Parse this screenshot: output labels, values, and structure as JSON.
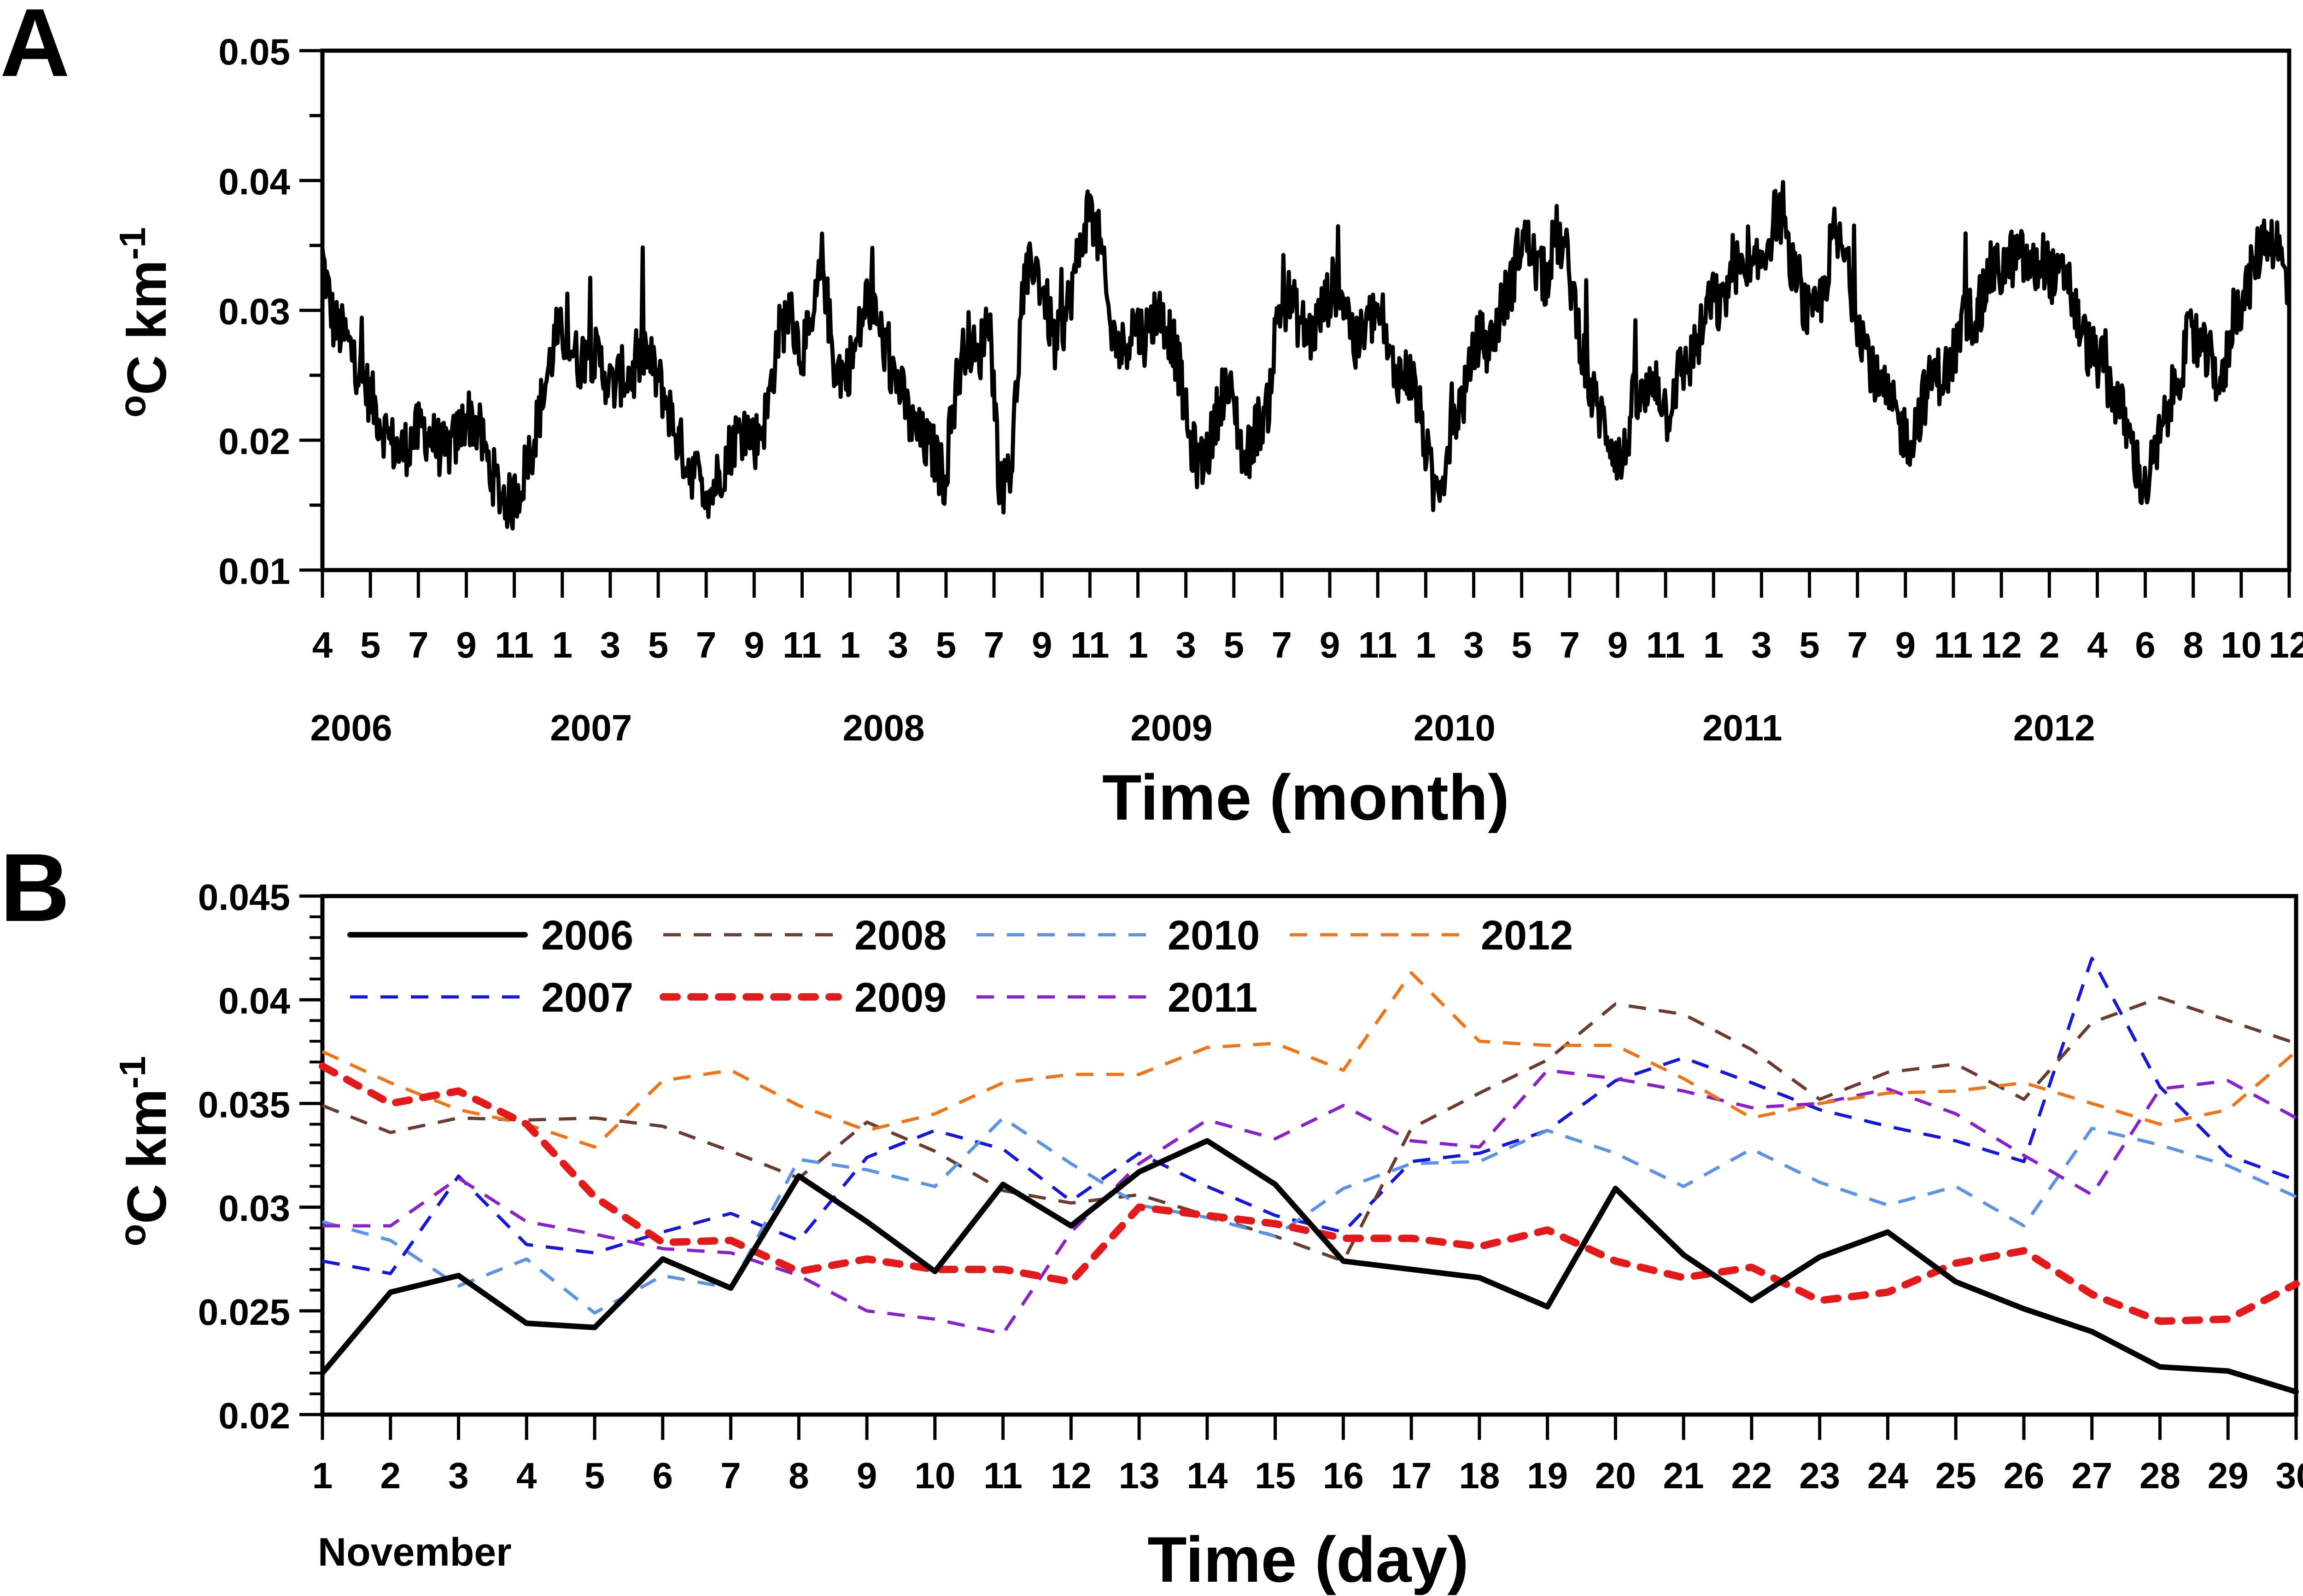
{
  "chart_data": [
    {
      "panel_label": "A",
      "type": "line",
      "ylabel": "°C km⁻¹",
      "xlabel": "Time (month)",
      "ylim": [
        0.01,
        0.05
      ],
      "yticks": [
        "0.01",
        "0.02",
        "0.03",
        "0.04",
        "0.05"
      ],
      "month_ticks": [
        "4",
        "5",
        "7",
        "9",
        "11",
        "1",
        "3",
        "5",
        "7",
        "9",
        "11",
        "1",
        "3",
        "5",
        "7",
        "9",
        "11",
        "1",
        "3",
        "5",
        "7",
        "9",
        "11",
        "1",
        "3",
        "5",
        "7",
        "9",
        "11",
        "1",
        "3",
        "5",
        "7",
        "9",
        "11",
        "12",
        "2",
        "4",
        "6",
        "8",
        "10",
        "12"
      ],
      "year_labels": [
        {
          "label": "2006",
          "month_index": 0.6
        },
        {
          "label": "2007",
          "month_index": 5.6
        },
        {
          "label": "2008",
          "month_index": 11.7
        },
        {
          "label": "2009",
          "month_index": 17.7
        },
        {
          "label": "2010",
          "month_index": 23.6
        },
        {
          "label": "2011",
          "month_index": 29.6
        },
        {
          "label": "2012",
          "month_index": 36.1
        }
      ],
      "series": [
        {
          "color": "#000000",
          "y": [
            0.034,
            0.029,
            0.028,
            0.026,
            0.024,
            0.022,
            0.02,
            0.019,
            0.02,
            0.021,
            0.02,
            0.019,
            0.02,
            0.022,
            0.021,
            0.018,
            0.016,
            0.015,
            0.017,
            0.02,
            0.024,
            0.028,
            0.028,
            0.026,
            0.027,
            0.026,
            0.024,
            0.025,
            0.025,
            0.027,
            0.025,
            0.023,
            0.02,
            0.018,
            0.017,
            0.016,
            0.018,
            0.02,
            0.021,
            0.02,
            0.022,
            0.028,
            0.03,
            0.027,
            0.028,
            0.034,
            0.026,
            0.025,
            0.027,
            0.031,
            0.029,
            0.026,
            0.024,
            0.021,
            0.02,
            0.019,
            0.017,
            0.024,
            0.028,
            0.026,
            0.03,
            0.016,
            0.018,
            0.031,
            0.034,
            0.031,
            0.027,
            0.03,
            0.034,
            0.038,
            0.035,
            0.028,
            0.027,
            0.029,
            0.028,
            0.03,
            0.029,
            0.026,
            0.02,
            0.018,
            0.02,
            0.024,
            0.023,
            0.018,
            0.021,
            0.022,
            0.03,
            0.031,
            0.029,
            0.028,
            0.03,
            0.032,
            0.031,
            0.027,
            0.029,
            0.03,
            0.026,
            0.025,
            0.025,
            0.021,
            0.016,
            0.018,
            0.022,
            0.024,
            0.028,
            0.027,
            0.03,
            0.032,
            0.036,
            0.034,
            0.032,
            0.036,
            0.034,
            0.029,
            0.024,
            0.022,
            0.02,
            0.018,
            0.023,
            0.023,
            0.025,
            0.022,
            0.025,
            0.026,
            0.028,
            0.031,
            0.03,
            0.034,
            0.032,
            0.033,
            0.035,
            0.038,
            0.034,
            0.031,
            0.029,
            0.031,
            0.036,
            0.034,
            0.03,
            0.027,
            0.024,
            0.023,
            0.021,
            0.02,
            0.023,
            0.025,
            0.025,
            0.027,
            0.03,
            0.029,
            0.033,
            0.033,
            0.034,
            0.034,
            0.033,
            0.034,
            0.032,
            0.033,
            0.029,
            0.027,
            0.026,
            0.024,
            0.022,
            0.019,
            0.016,
            0.019,
            0.022,
            0.025,
            0.028,
            0.027,
            0.026,
            0.024,
            0.03,
            0.031,
            0.034,
            0.036,
            0.035,
            0.031
          ]
        }
      ]
    },
    {
      "panel_label": "B",
      "type": "line",
      "ylabel": "°C km⁻¹",
      "xlabel": "Time (day)",
      "x_sublabel": "November",
      "ylim": [
        0.02,
        0.045
      ],
      "yticks": [
        "0.02",
        "0.025",
        "0.03",
        "0.035",
        "0.04",
        "0.045"
      ],
      "x": [
        1,
        2,
        3,
        4,
        5,
        6,
        7,
        8,
        9,
        10,
        11,
        12,
        13,
        14,
        15,
        16,
        17,
        18,
        19,
        20,
        21,
        22,
        23,
        24,
        25,
        26,
        27,
        28,
        29,
        30
      ],
      "series": [
        {
          "name": "2006",
          "color": "#000000",
          "style": "solid",
          "y": [
            0.022,
            0.0259,
            0.0267,
            0.0244,
            0.0242,
            0.0275,
            0.0261,
            0.0315,
            0.0293,
            0.0269,
            0.0311,
            0.0291,
            0.0317,
            0.0332,
            0.0311,
            0.0274,
            0.027,
            0.0266,
            0.0252,
            0.0309,
            0.0277,
            0.0255,
            0.0276,
            0.0288,
            0.0264,
            0.0251,
            0.024,
            0.0223,
            0.0221,
            0.0211
          ]
        },
        {
          "name": "2007",
          "color": "#1515e0",
          "style": "dashed",
          "y": [
            0.0274,
            0.0268,
            0.0315,
            0.0282,
            0.0278,
            0.0288,
            0.0297,
            0.0284,
            0.0324,
            0.0337,
            0.0328,
            0.0303,
            0.0326,
            0.031,
            0.0296,
            0.0288,
            0.0322,
            0.0326,
            0.0337,
            0.0361,
            0.0372,
            0.036,
            0.0347,
            0.0339,
            0.0332,
            0.0322,
            0.042,
            0.0358,
            0.0325,
            0.0313
          ]
        },
        {
          "name": "2008",
          "color": "#6b3b2e",
          "style": "dashed",
          "y": [
            0.0349,
            0.0336,
            0.0343,
            0.0342,
            0.0343,
            0.0339,
            0.0327,
            0.0314,
            0.0341,
            0.0327,
            0.0308,
            0.0302,
            0.0306,
            0.0296,
            0.0286,
            0.0274,
            0.0338,
            0.0355,
            0.0371,
            0.0398,
            0.0393,
            0.0376,
            0.0352,
            0.0365,
            0.0369,
            0.0352,
            0.0389,
            0.0401,
            0.039,
            0.0379
          ]
        },
        {
          "name": "2009",
          "color": "#e41a1a",
          "style": "dotted",
          "y": [
            0.0368,
            0.035,
            0.0356,
            0.034,
            0.0305,
            0.0283,
            0.0284,
            0.0269,
            0.0275,
            0.027,
            0.027,
            0.0264,
            0.03,
            0.0296,
            0.0292,
            0.0285,
            0.0285,
            0.0281,
            0.0289,
            0.0274,
            0.0266,
            0.0271,
            0.0255,
            0.0259,
            0.0273,
            0.0279,
            0.0258,
            0.0245,
            0.0246,
            0.0263
          ]
        },
        {
          "name": "2010",
          "color": "#5a93e6",
          "style": "dashed",
          "y": [
            0.0293,
            0.0284,
            0.0262,
            0.0275,
            0.0249,
            0.0267,
            0.0261,
            0.0323,
            0.0318,
            0.031,
            0.0343,
            0.0321,
            0.0301,
            0.0295,
            0.0286,
            0.0309,
            0.0321,
            0.0322,
            0.0337,
            0.0326,
            0.031,
            0.0328,
            0.0312,
            0.0301,
            0.031,
            0.0291,
            0.0338,
            0.033,
            0.032,
            0.0305
          ]
        },
        {
          "name": "2011",
          "color": "#8b1fc9",
          "style": "dashed",
          "y": [
            0.0291,
            0.0291,
            0.0314,
            0.0293,
            0.0287,
            0.028,
            0.0278,
            0.0267,
            0.025,
            0.0246,
            0.0239,
            0.0288,
            0.0321,
            0.0342,
            0.0333,
            0.0349,
            0.0332,
            0.0329,
            0.0366,
            0.0362,
            0.0356,
            0.0348,
            0.035,
            0.0357,
            0.0345,
            0.0325,
            0.0306,
            0.0357,
            0.0361,
            0.0343
          ]
        },
        {
          "name": "2012",
          "color": "#f07316",
          "style": "dashed",
          "y": [
            0.0375,
            0.036,
            0.0347,
            0.034,
            0.0329,
            0.0361,
            0.0366,
            0.0349,
            0.0337,
            0.0345,
            0.036,
            0.0364,
            0.0364,
            0.0377,
            0.0379,
            0.0366,
            0.0413,
            0.038,
            0.0378,
            0.0378,
            0.0362,
            0.0343,
            0.035,
            0.0355,
            0.0356,
            0.036,
            0.035,
            0.034,
            0.0347,
            0.0375
          ]
        }
      ]
    }
  ]
}
